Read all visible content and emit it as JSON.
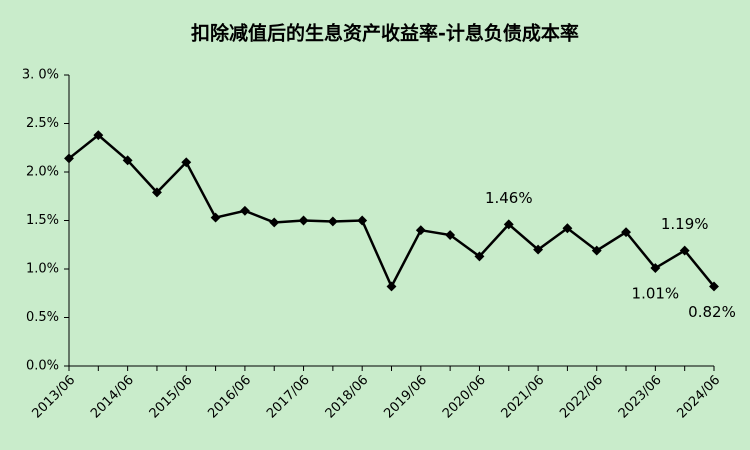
{
  "chart_data": {
    "type": "line",
    "title": "扣除减值后的生息资产收益率-计息负债成本率",
    "categories": [
      "2013/06",
      null,
      "2014/06",
      null,
      "2015/06",
      null,
      "2016/06",
      null,
      "2017/06",
      null,
      "2018/06",
      null,
      "2019/06",
      null,
      "2020/06",
      null,
      "2021/06",
      null,
      "2022/06",
      null,
      "2023/06",
      null,
      "2024/06"
    ],
    "series": [
      {
        "color": "#000000",
        "values": [
          2.14,
          2.38,
          2.12,
          1.79,
          2.1,
          1.53,
          1.6,
          1.48,
          1.5,
          1.49,
          1.5,
          0.82,
          1.4,
          1.35,
          1.13,
          1.46,
          1.2,
          1.42,
          1.19,
          1.38,
          1.01,
          1.19,
          0.82
        ],
        "value_labels": [
          null,
          null,
          null,
          null,
          null,
          null,
          null,
          null,
          null,
          null,
          null,
          null,
          null,
          null,
          null,
          "1.46%",
          null,
          null,
          null,
          null,
          "1.01%",
          "1.19%",
          "0.82%"
        ]
      }
    ],
    "ylim": [
      0,
      3
    ],
    "yticks": [
      {
        "value": 0,
        "label": "0.0%"
      },
      {
        "value": 0.5,
        "label": "0.5%"
      },
      {
        "value": 1,
        "label": "1.0%"
      },
      {
        "value": 1.5,
        "label": "1.5%"
      },
      {
        "value": 2,
        "label": "2.0%"
      },
      {
        "value": 2.5,
        "label": "2.5%"
      },
      {
        "value": 3,
        "label": "3. 0%"
      }
    ],
    "background": "#c9eccb"
  }
}
